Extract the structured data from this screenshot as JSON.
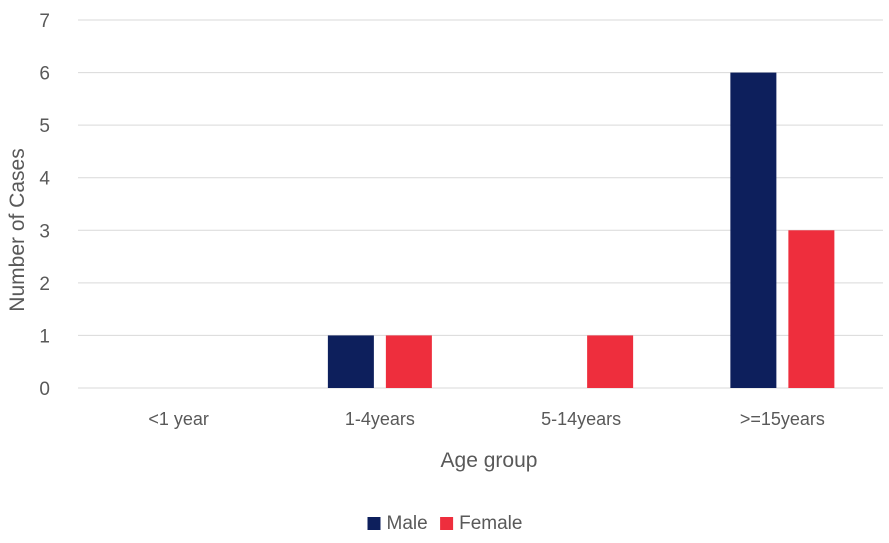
{
  "chart_data": {
    "type": "bar",
    "title": "",
    "xlabel": "Age group",
    "ylabel": "Number of Cases",
    "categories": [
      "<1 year",
      "1-4years",
      "5-14years",
      ">=15years"
    ],
    "series": [
      {
        "name": "Male",
        "color": "#0d1f5c",
        "values": [
          0,
          1,
          0,
          6
        ]
      },
      {
        "name": "Female",
        "color": "#ee2e3d",
        "values": [
          0,
          1,
          1,
          3
        ]
      }
    ],
    "ylim": [
      0,
      7
    ],
    "yticks": [
      0,
      1,
      2,
      3,
      4,
      5,
      6,
      7
    ],
    "grid": true,
    "legend": "bottom-center"
  }
}
